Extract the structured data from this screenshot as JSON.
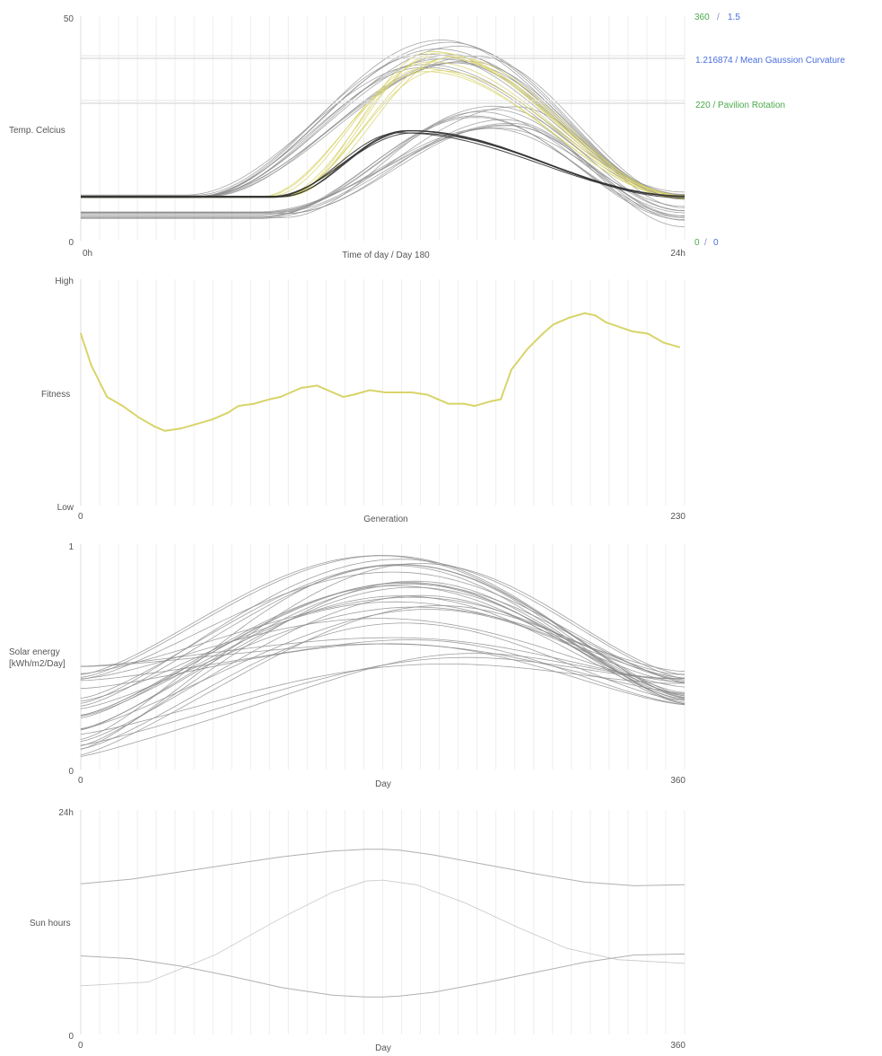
{
  "chart_data": [
    {
      "type": "line",
      "ylabel": "Temp. Celcius",
      "xlabel": "Time of day / Day 180",
      "y_top_label": "50",
      "y_bottom_label": "0",
      "x_start_label": "0h",
      "x_end_label": "24h",
      "ylim": [
        0,
        50
      ],
      "xlim": [
        0,
        24
      ],
      "right_axis": {
        "top_green": "360",
        "top_sep": "/",
        "top_blue": "1.5",
        "bottom_green": "0",
        "bottom_sep": "/",
        "bottom_blue": "0"
      },
      "markers": [
        {
          "label": "1.216874 / Mean Gaussion Curvature",
          "color": "#4a6ee0",
          "value": 40.6
        },
        {
          "label": "220 / Pavilion Rotation",
          "color": "#4aa84a",
          "value": 30.6
        }
      ],
      "colors": {
        "grey": "#8a8a8a",
        "dark": "#333333",
        "yellow": "#d8d46a"
      },
      "series_groups": [
        {
          "count": 13,
          "peak_range": [
            38,
            45
          ],
          "peak_x_range": [
            13.6,
            15.8
          ],
          "base_range": [
            9.5,
            10.2
          ],
          "rise_x": 4,
          "tone": "grey"
        },
        {
          "count": 12,
          "peak_range": [
            25,
            30
          ],
          "peak_x_range": [
            15.6,
            17.4
          ],
          "base_range": [
            4.6,
            6.6
          ],
          "rise_x": 7,
          "tone": "grey"
        },
        {
          "count": 9,
          "peak_range": [
            37,
            45
          ],
          "peak_x_range": [
            13.6,
            14.9
          ],
          "base_range": [
            9.6,
            10
          ],
          "rise_x": 7,
          "tone": "yellow"
        },
        {
          "count": 5,
          "peak_range": [
            23.6,
            24.6
          ],
          "peak_x_range": [
            12.6,
            13.4
          ],
          "base_range": [
            9.6,
            9.9
          ],
          "rise_x": 7,
          "tone": "dark"
        }
      ]
    },
    {
      "type": "line",
      "ylabel": "Fitness",
      "xlabel": "Generation",
      "y_top_label": "High",
      "y_bottom_label": "Low",
      "x_start_label": "0",
      "x_end_label": "230",
      "xlim": [
        0,
        230
      ],
      "ylim": [
        0,
        1
      ],
      "color": "#d8d46a",
      "series": [
        {
          "x": [
            0,
            4,
            10,
            16,
            22,
            28,
            32,
            38,
            44,
            50,
            56,
            60,
            66,
            72,
            76,
            80,
            84,
            90,
            96,
            100,
            104,
            110,
            116,
            120,
            126,
            132,
            136,
            140,
            146,
            150,
            156,
            160,
            164,
            170,
            176,
            180,
            186,
            192,
            196,
            200,
            210,
            216,
            222,
            228
          ],
          "y": [
            0.76,
            0.62,
            0.48,
            0.44,
            0.39,
            0.35,
            0.33,
            0.34,
            0.36,
            0.38,
            0.41,
            0.44,
            0.45,
            0.47,
            0.48,
            0.5,
            0.52,
            0.53,
            0.5,
            0.48,
            0.49,
            0.51,
            0.5,
            0.5,
            0.5,
            0.49,
            0.47,
            0.45,
            0.45,
            0.44,
            0.46,
            0.47,
            0.6,
            0.69,
            0.76,
            0.8,
            0.83,
            0.85,
            0.84,
            0.81,
            0.77,
            0.76,
            0.72,
            0.7
          ]
        }
      ]
    },
    {
      "type": "line",
      "ylabel": "Solar energy",
      "ylabel2": "[kWh/m2/Day]",
      "xlabel": "Day",
      "y_top_label": "1",
      "y_bottom_label": "0",
      "x_start_label": "0",
      "x_end_label": "360",
      "xlim": [
        0,
        360
      ],
      "ylim": [
        0,
        1
      ],
      "color": "#888888",
      "series_generator": {
        "count": 30,
        "start_range": [
          0.04,
          0.48
        ],
        "peak_range": [
          0.45,
          0.96
        ],
        "end_range": [
          0.28,
          0.44
        ]
      }
    },
    {
      "type": "line",
      "ylabel": "Sun hours",
      "xlabel": "Day",
      "y_top_label": "24h",
      "y_bottom_label": "0",
      "x_start_label": "0",
      "x_end_label": "360",
      "xlim": [
        0,
        360
      ],
      "ylim": [
        0,
        24
      ],
      "color": "#b0b0b0",
      "series": [
        {
          "x": [
            0,
            30,
            60,
            90,
            120,
            150,
            170,
            180,
            190,
            210,
            240,
            270,
            300,
            330,
            360
          ],
          "y": [
            16.1,
            16.6,
            17.4,
            18.2,
            19,
            19.6,
            19.8,
            19.8,
            19.7,
            19.2,
            18.2,
            17.2,
            16.3,
            15.9,
            16
          ]
        },
        {
          "x": [
            0,
            30,
            60,
            90,
            120,
            150,
            170,
            180,
            190,
            210,
            240,
            270,
            300,
            330,
            360
          ],
          "y": [
            8.4,
            8.1,
            7.3,
            6.2,
            5.0,
            4.2,
            4.0,
            4.0,
            4.1,
            4.5,
            5.5,
            6.6,
            7.7,
            8.5,
            8.6
          ]
        },
        {
          "x": [
            0,
            40,
            80,
            120,
            150,
            170,
            180,
            200,
            230,
            260,
            290,
            320,
            360
          ],
          "y": [
            5.2,
            5.6,
            8.5,
            12.5,
            15.2,
            16.4,
            16.5,
            16.0,
            14.0,
            11.5,
            9.2,
            8.0,
            7.6
          ]
        }
      ]
    }
  ]
}
